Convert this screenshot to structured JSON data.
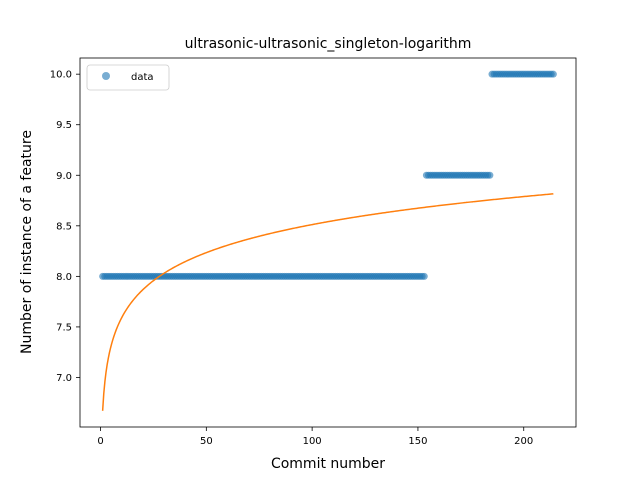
{
  "chart_data": {
    "type": "scatter",
    "title": "ultrasonic-ultrasonic_singleton-logarithm",
    "xlabel": "Commit number",
    "ylabel": "Number of instance of a feature",
    "xlim": [
      -9.7,
      224.7
    ],
    "ylim": [
      6.51,
      10.16
    ],
    "xticks": [
      0,
      50,
      100,
      150,
      200
    ],
    "xtick_labels": [
      "0",
      "50",
      "100",
      "150",
      "200"
    ],
    "yticks": [
      7.0,
      7.5,
      8.0,
      8.5,
      9.0,
      9.5,
      10.0
    ],
    "ytick_labels": [
      "7.0",
      "7.5",
      "8.0",
      "8.5",
      "9.0",
      "9.5",
      "10.0"
    ],
    "grid": false,
    "legend": {
      "placement": "upper-left",
      "entries": [
        "data"
      ]
    },
    "series": [
      {
        "name": "data",
        "kind": "scatter",
        "color": "#1f77b4",
        "alpha": 0.6,
        "segments": [
          {
            "x_from": 1,
            "x_to": 153,
            "y": 8.0
          },
          {
            "x_from": 154,
            "x_to": 184,
            "y": 9.0
          },
          {
            "x_from": 185,
            "x_to": 214,
            "y": 10.0
          }
        ]
      },
      {
        "kind": "line",
        "color": "#ff7f0e",
        "fit": "logarithmic",
        "a": 6.67,
        "b": 0.4,
        "x_range": [
          1,
          214
        ]
      }
    ]
  }
}
